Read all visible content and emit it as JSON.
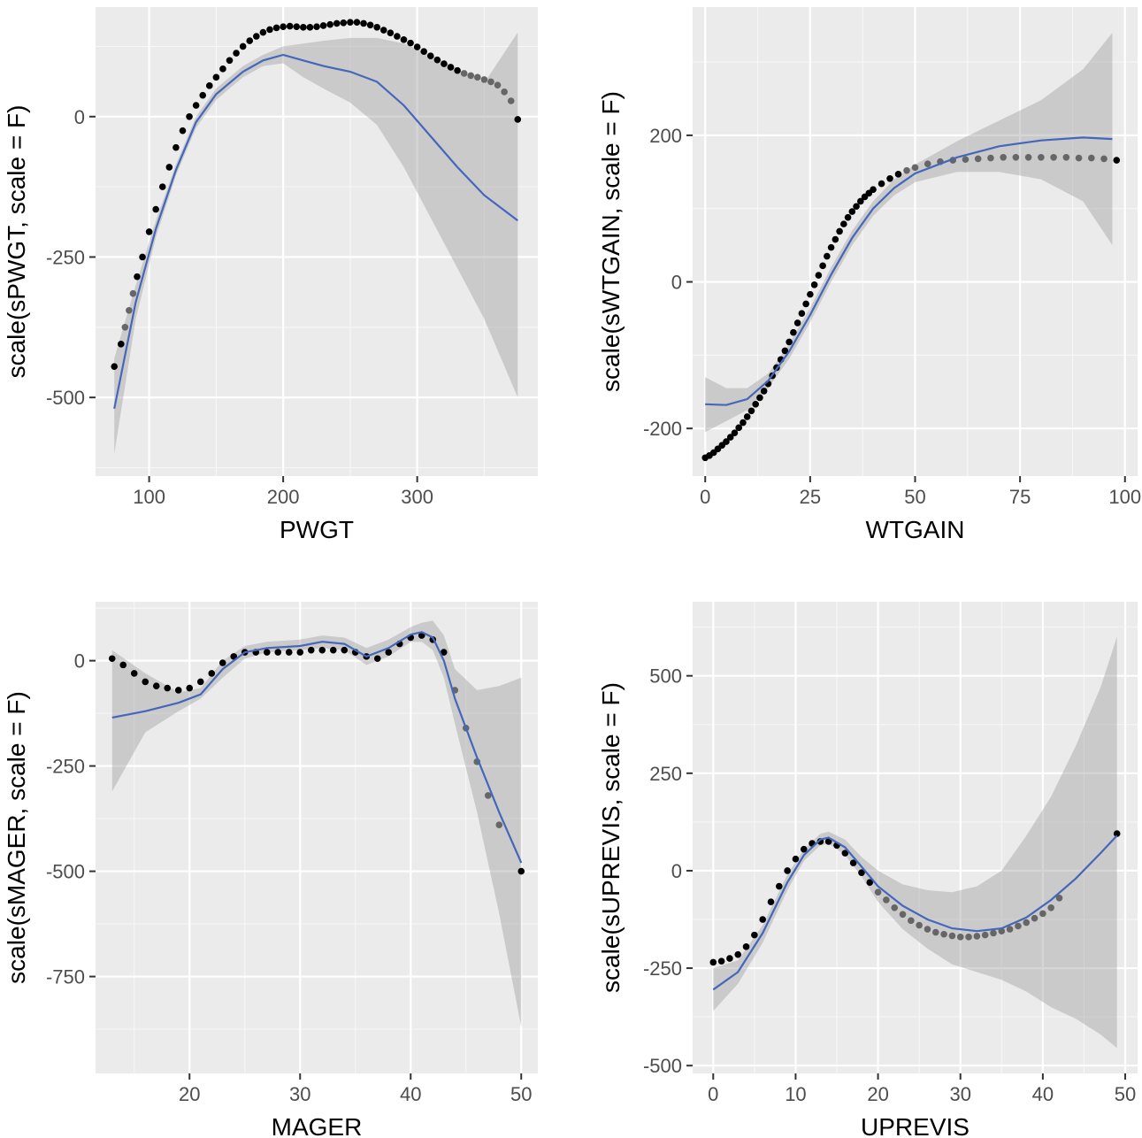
{
  "colors": {
    "panel_background": "#ebebeb",
    "grid": "#ffffff",
    "fit_line": "#4466bb",
    "ribbon": "#999999",
    "points_dark": "#000000",
    "points_grey": "#666666"
  },
  "chart_data": [
    {
      "type": "scatter",
      "xlabel": "PWGT",
      "ylabel": "scale(sPWGT, scale = F)",
      "xlim": [
        60,
        390
      ],
      "ylim": [
        -640,
        195
      ],
      "xticks": [
        100,
        200,
        300
      ],
      "yticks": [
        0,
        -250,
        -500
      ],
      "xtick_labels": [
        "100",
        "200",
        "300"
      ],
      "ytick_labels": [
        "0",
        "-250",
        "-500"
      ],
      "grid": true,
      "series": [
        {
          "kind": "points",
          "x": [
            74,
            79,
            82,
            85,
            88,
            91,
            95,
            100,
            105,
            110,
            115,
            120,
            125,
            130,
            135,
            140,
            145,
            150,
            155,
            160,
            165,
            170,
            175,
            180,
            185,
            190,
            195,
            200,
            205,
            210,
            215,
            220,
            225,
            230,
            235,
            240,
            245,
            250,
            255,
            260,
            265,
            270,
            275,
            280,
            285,
            290,
            295,
            300,
            305,
            310,
            315,
            320,
            325,
            330,
            335,
            340,
            345,
            350,
            355,
            360,
            365,
            370,
            375
          ],
          "y": [
            -445,
            -405,
            -375,
            -345,
            -315,
            -285,
            -250,
            -205,
            -165,
            -125,
            -90,
            -55,
            -25,
            0,
            20,
            38,
            55,
            70,
            85,
            100,
            113,
            125,
            135,
            143,
            150,
            155,
            158,
            160,
            161,
            160,
            159,
            159,
            160,
            162,
            164,
            166,
            167,
            168,
            168,
            166,
            163,
            159,
            154,
            149,
            143,
            137,
            131,
            124,
            116,
            108,
            101,
            94,
            88,
            82,
            77,
            73,
            70,
            66,
            62,
            56,
            44,
            28,
            -5
          ],
          "color_by_group": [
            "dark",
            "dark",
            "grey",
            "grey",
            "grey",
            "dark",
            "dark",
            "dark",
            "dark",
            "dark",
            "dark",
            "dark",
            "dark",
            "dark",
            "dark",
            "dark",
            "dark",
            "dark",
            "dark",
            "dark",
            "dark",
            "dark",
            "dark",
            "dark",
            "dark",
            "dark",
            "dark",
            "dark",
            "dark",
            "dark",
            "dark",
            "dark",
            "dark",
            "dark",
            "dark",
            "dark",
            "dark",
            "dark",
            "dark",
            "dark",
            "dark",
            "dark",
            "dark",
            "dark",
            "dark",
            "dark",
            "dark",
            "dark",
            "dark",
            "dark",
            "dark",
            "dark",
            "dark",
            "dark",
            "grey",
            "grey",
            "grey",
            "grey",
            "grey",
            "grey",
            "grey",
            "grey",
            "dark"
          ]
        },
        {
          "kind": "fit",
          "x": [
            74,
            90,
            105,
            120,
            135,
            150,
            170,
            185,
            200,
            215,
            230,
            250,
            270,
            290,
            310,
            330,
            350,
            375
          ],
          "y": [
            -520,
            -330,
            -200,
            -95,
            -10,
            40,
            80,
            100,
            110,
            100,
            90,
            80,
            62,
            20,
            -35,
            -90,
            -140,
            -185
          ],
          "ymin": [
            -600,
            -360,
            -215,
            -105,
            -20,
            30,
            70,
            90,
            95,
            70,
            50,
            25,
            -15,
            -90,
            -180,
            -270,
            -360,
            -500
          ],
          "ymax": [
            -430,
            -300,
            -185,
            -85,
            0,
            50,
            90,
            110,
            125,
            130,
            135,
            140,
            140,
            130,
            110,
            85,
            60,
            150
          ]
        }
      ]
    },
    {
      "type": "scatter",
      "xlabel": "WTGAIN",
      "ylabel": "scale(sWTGAIN, scale = F)",
      "xlim": [
        -3,
        103
      ],
      "ylim": [
        -265,
        375
      ],
      "xticks": [
        0,
        25,
        50,
        75,
        100
      ],
      "yticks": [
        200,
        0,
        -200
      ],
      "xtick_labels": [
        "0",
        "25",
        "50",
        "75",
        "100"
      ],
      "ytick_labels": [
        "200",
        "0",
        "-200"
      ],
      "grid": true,
      "series": [
        {
          "kind": "points",
          "x": [
            0,
            1,
            2,
            3,
            4,
            5,
            6,
            7,
            8,
            9,
            10,
            11,
            12,
            13,
            14,
            15,
            16,
            17,
            18,
            19,
            20,
            21,
            22,
            23,
            24,
            25,
            26,
            27,
            28,
            29,
            30,
            31,
            32,
            33,
            34,
            35,
            36,
            37,
            38,
            39,
            40,
            42,
            44,
            46,
            48,
            50,
            53,
            56,
            59,
            62,
            65,
            68,
            71,
            74,
            77,
            80,
            83,
            86,
            89,
            92,
            95,
            98
          ],
          "y": [
            -240,
            -237,
            -233,
            -228,
            -223,
            -218,
            -212,
            -206,
            -199,
            -192,
            -184,
            -176,
            -167,
            -158,
            -149,
            -139,
            -128,
            -117,
            -106,
            -94,
            -82,
            -69,
            -56,
            -43,
            -30,
            -17,
            -4,
            9,
            22,
            35,
            47,
            58,
            69,
            79,
            88,
            96,
            103,
            110,
            116,
            121,
            126,
            134,
            141,
            147,
            152,
            156,
            161,
            164,
            166,
            167,
            168,
            169,
            170,
            170,
            170,
            170,
            170,
            170,
            169,
            169,
            168,
            166
          ],
          "color_by_group": [
            "dark",
            "dark",
            "dark",
            "dark",
            "dark",
            "dark",
            "dark",
            "dark",
            "dark",
            "dark",
            "dark",
            "dark",
            "dark",
            "dark",
            "dark",
            "dark",
            "dark",
            "dark",
            "dark",
            "dark",
            "dark",
            "dark",
            "dark",
            "dark",
            "dark",
            "dark",
            "dark",
            "dark",
            "dark",
            "dark",
            "dark",
            "dark",
            "dark",
            "dark",
            "dark",
            "dark",
            "dark",
            "dark",
            "dark",
            "dark",
            "dark",
            "dark",
            "dark",
            "dark",
            "grey",
            "grey",
            "grey",
            "grey",
            "grey",
            "grey",
            "grey",
            "grey",
            "grey",
            "grey",
            "grey",
            "grey",
            "grey",
            "grey",
            "grey",
            "grey",
            "grey",
            "dark"
          ]
        },
        {
          "kind": "fit",
          "x": [
            0,
            5,
            10,
            15,
            20,
            25,
            30,
            35,
            40,
            45,
            50,
            60,
            70,
            80,
            90,
            97
          ],
          "y": [
            -167,
            -168,
            -160,
            -135,
            -95,
            -45,
            10,
            60,
            100,
            128,
            148,
            170,
            185,
            193,
            197,
            195
          ],
          "ymin": [
            -205,
            -190,
            -175,
            -145,
            -105,
            -55,
            0,
            50,
            90,
            118,
            136,
            150,
            150,
            140,
            110,
            50
          ],
          "ymax": [
            -130,
            -145,
            -145,
            -125,
            -85,
            -35,
            20,
            70,
            110,
            140,
            160,
            192,
            220,
            248,
            290,
            340
          ]
        }
      ]
    },
    {
      "type": "scatter",
      "xlabel": "MAGER",
      "ylabel": "scale(sMAGER, scale = F)",
      "xlim": [
        11.5,
        51.5
      ],
      "ylim": [
        -980,
        140
      ],
      "xticks": [
        20,
        30,
        40,
        50
      ],
      "yticks": [
        0,
        -250,
        -500,
        -750
      ],
      "xtick_labels": [
        "20",
        "30",
        "40",
        "50"
      ],
      "ytick_labels": [
        "0",
        "-250",
        "-500",
        "-750"
      ],
      "grid": true,
      "series": [
        {
          "kind": "points",
          "x": [
            13,
            14,
            15,
            16,
            17,
            18,
            19,
            20,
            21,
            22,
            23,
            24,
            25,
            26,
            27,
            28,
            29,
            30,
            31,
            32,
            33,
            34,
            35,
            36,
            37,
            38,
            39,
            40,
            41,
            42,
            43,
            44,
            45,
            46,
            47,
            48,
            50
          ],
          "y": [
            5,
            -10,
            -30,
            -50,
            -60,
            -65,
            -70,
            -65,
            -50,
            -30,
            -5,
            10,
            20,
            20,
            20,
            20,
            20,
            20,
            25,
            25,
            25,
            25,
            20,
            10,
            5,
            20,
            40,
            55,
            60,
            50,
            20,
            -70,
            -160,
            -240,
            -320,
            -390,
            -500
          ],
          "color_by_group": [
            "dark",
            "dark",
            "dark",
            "dark",
            "dark",
            "dark",
            "dark",
            "dark",
            "dark",
            "dark",
            "dark",
            "dark",
            "dark",
            "dark",
            "dark",
            "dark",
            "dark",
            "dark",
            "dark",
            "dark",
            "dark",
            "dark",
            "dark",
            "dark",
            "dark",
            "dark",
            "dark",
            "dark",
            "dark",
            "dark",
            "dark",
            "grey",
            "grey",
            "grey",
            "grey",
            "grey",
            "dark"
          ]
        },
        {
          "kind": "fit",
          "x": [
            13,
            16,
            19,
            21,
            23,
            25,
            27,
            30,
            32,
            34,
            36,
            38,
            40,
            41,
            42,
            43,
            44,
            46,
            48,
            50
          ],
          "y": [
            -135,
            -120,
            -100,
            -80,
            -20,
            20,
            30,
            35,
            45,
            40,
            10,
            30,
            62,
            68,
            55,
            0,
            -90,
            -230,
            -360,
            -480
          ],
          "ymin": [
            -310,
            -170,
            -120,
            -90,
            -40,
            5,
            20,
            25,
            30,
            25,
            -10,
            10,
            45,
            45,
            25,
            -40,
            -150,
            -360,
            -600,
            -870
          ],
          "ymax": [
            25,
            -30,
            -75,
            -65,
            0,
            35,
            45,
            50,
            60,
            55,
            30,
            50,
            80,
            90,
            95,
            60,
            -20,
            -70,
            -60,
            -40
          ]
        }
      ]
    },
    {
      "type": "scatter",
      "xlabel": "UPREVIS",
      "ylabel": "scale(sUPREVIS, scale = F)",
      "xlim": [
        -2.5,
        51.5
      ],
      "ylim": [
        -520,
        690
      ],
      "xticks": [
        0,
        10,
        20,
        30,
        40,
        50
      ],
      "yticks": [
        500,
        250,
        0,
        -250,
        -500
      ],
      "xtick_labels": [
        "0",
        "10",
        "20",
        "30",
        "40",
        "50"
      ],
      "ytick_labels": [
        "500",
        "250",
        "0",
        "-250",
        "-500"
      ],
      "grid": true,
      "series": [
        {
          "kind": "points",
          "x": [
            0,
            1,
            2,
            3,
            4,
            5,
            6,
            7,
            8,
            9,
            10,
            11,
            12,
            13,
            14,
            15,
            16,
            17,
            18,
            19,
            20,
            21,
            22,
            23,
            24,
            25,
            26,
            27,
            28,
            29,
            30,
            31,
            32,
            33,
            34,
            35,
            36,
            37,
            38,
            39,
            40,
            41,
            42,
            49
          ],
          "y": [
            -235,
            -232,
            -225,
            -215,
            -195,
            -165,
            -125,
            -80,
            -40,
            0,
            30,
            55,
            70,
            75,
            75,
            65,
            45,
            20,
            -5,
            -30,
            -55,
            -75,
            -95,
            -112,
            -128,
            -140,
            -150,
            -158,
            -163,
            -167,
            -170,
            -170,
            -168,
            -165,
            -160,
            -155,
            -150,
            -142,
            -133,
            -122,
            -110,
            -95,
            -70,
            95
          ],
          "color_by_group": [
            "dark",
            "dark",
            "dark",
            "dark",
            "dark",
            "dark",
            "dark",
            "dark",
            "dark",
            "dark",
            "dark",
            "dark",
            "dark",
            "dark",
            "dark",
            "dark",
            "dark",
            "dark",
            "dark",
            "dark",
            "grey",
            "grey",
            "grey",
            "grey",
            "grey",
            "grey",
            "grey",
            "grey",
            "grey",
            "grey",
            "grey",
            "grey",
            "grey",
            "grey",
            "grey",
            "grey",
            "grey",
            "grey",
            "grey",
            "grey",
            "grey",
            "grey",
            "grey",
            "dark"
          ]
        },
        {
          "kind": "fit",
          "x": [
            0,
            3,
            6,
            9,
            11,
            13,
            14,
            16,
            18,
            20,
            23,
            26,
            29,
            32,
            35,
            38,
            41,
            44,
            47,
            49
          ],
          "y": [
            -305,
            -260,
            -160,
            -30,
            40,
            80,
            85,
            60,
            10,
            -40,
            -90,
            -125,
            -148,
            -155,
            -148,
            -120,
            -75,
            -20,
            45,
            90
          ],
          "ymin": [
            -360,
            -290,
            -185,
            -50,
            25,
            65,
            70,
            40,
            -15,
            -80,
            -150,
            -200,
            -240,
            -260,
            -280,
            -310,
            -350,
            -380,
            -420,
            -455
          ],
          "ymax": [
            -250,
            -230,
            -140,
            -10,
            55,
            95,
            100,
            80,
            35,
            0,
            -35,
            -50,
            -55,
            -40,
            0,
            90,
            190,
            320,
            470,
            600
          ]
        }
      ]
    }
  ]
}
